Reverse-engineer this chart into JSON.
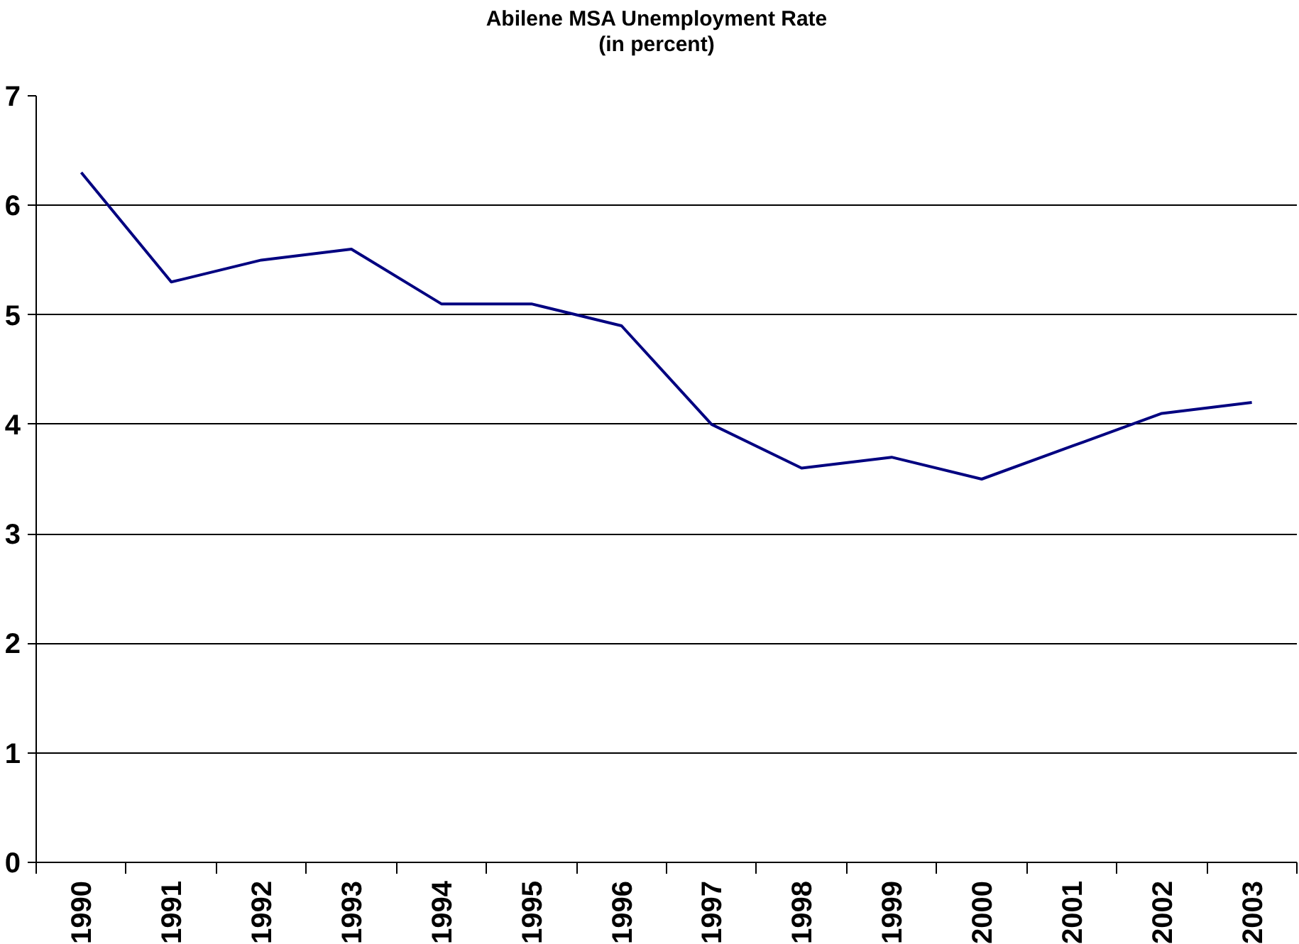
{
  "chart_data": {
    "type": "line",
    "title": "Abilene MSA Unemployment Rate\n(in percent)",
    "categories": [
      "1990",
      "1991",
      "1992",
      "1993",
      "1994",
      "1995",
      "1996",
      "1997",
      "1998",
      "1999",
      "2000",
      "2001",
      "2002",
      "2003"
    ],
    "series": [
      {
        "color": "#000080",
        "values": [
          6.3,
          5.3,
          5.5,
          5.6,
          5.1,
          5.1,
          4.9,
          4.0,
          3.6,
          3.7,
          3.5,
          3.8,
          4.1,
          4.2
        ]
      }
    ],
    "ylim": [
      0,
      7
    ],
    "yticks": [
      0,
      1,
      2,
      3,
      4,
      5,
      6,
      7
    ],
    "grid": "y",
    "marker": "none",
    "line_style": "solid"
  }
}
